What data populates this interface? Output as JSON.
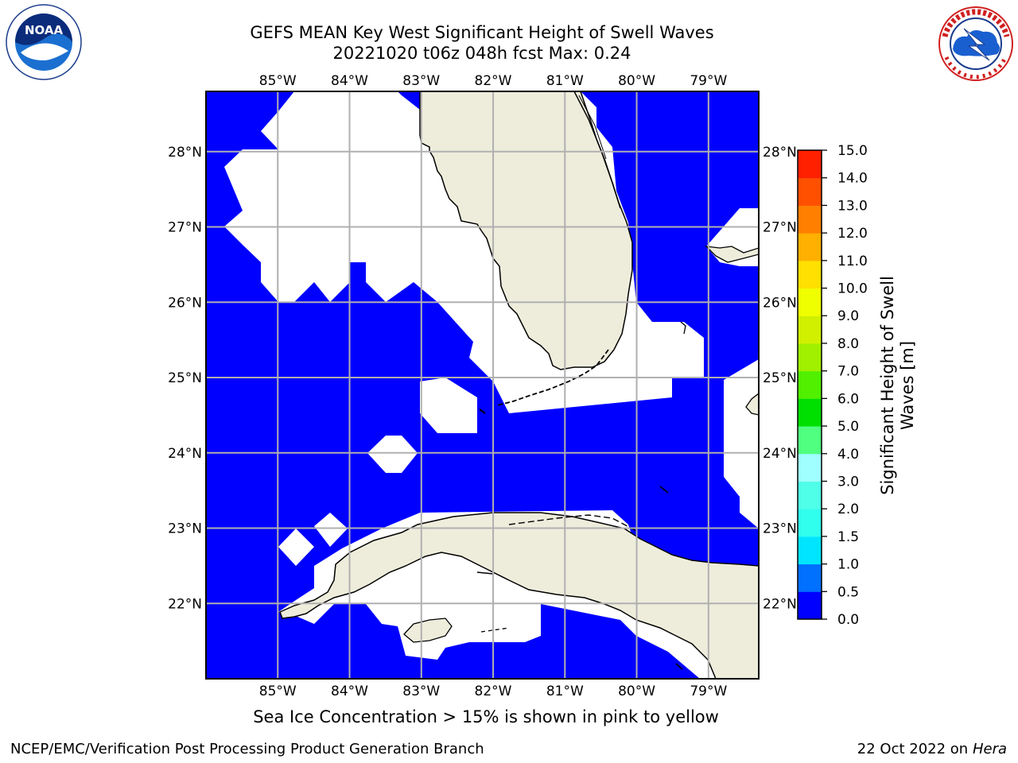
{
  "title": {
    "line1": "GEFS MEAN Key West Significant Height of Swell Waves",
    "line2": "20221020 t06z 048h fcst   Max: 0.24"
  },
  "logos": {
    "left": "noaa-logo",
    "left_text": "NOAA",
    "right": "nws-logo"
  },
  "map": {
    "lon_ticks": [
      "85°W",
      "84°W",
      "83°W",
      "82°W",
      "81°W",
      "80°W",
      "79°W"
    ],
    "lat_ticks": [
      "28°N",
      "27°N",
      "26°N",
      "25°N",
      "24°N",
      "23°N",
      "22°N"
    ],
    "lon_values": [
      -85,
      -84,
      -83,
      -82,
      -81,
      -80,
      -79
    ],
    "lat_values": [
      28,
      27,
      26,
      25,
      24,
      23,
      22
    ],
    "extent": {
      "lon_min": -86,
      "lon_max": -78.3,
      "lat_min": 21,
      "lat_max": 28.8
    },
    "water_color": "#0000ff",
    "land_color": "#eeeddc",
    "masked_color": "#ffffff",
    "grid_color": "#b0b0b0"
  },
  "colorbar": {
    "label": "Significant Height of Swell Waves [m]",
    "label_line1": "Significant Height of Swell",
    "label_line2": "Waves [m]",
    "tick_labels": [
      "0.0",
      "0.5",
      "1.0",
      "1.5",
      "2.0",
      "3.0",
      "4.0",
      "5.0",
      "6.0",
      "7.0",
      "8.0",
      "9.0",
      "10.0",
      "11.0",
      "12.0",
      "13.0",
      "14.0",
      "15.0"
    ],
    "colors": [
      "#0000ff",
      "#0070ff",
      "#00e5ff",
      "#30ffee",
      "#50ffe8",
      "#a0ffff",
      "#50ff80",
      "#00e000",
      "#50f000",
      "#a0f000",
      "#d0f000",
      "#f0ff00",
      "#ffe000",
      "#ffb000",
      "#ff8000",
      "#ff5000",
      "#ff2000",
      "#ff0000"
    ]
  },
  "note": "Sea Ice Concentration > 15% is shown in pink to yellow",
  "footer": {
    "left": "NCEP/EMC/Verification Post Processing Product Generation Branch",
    "right_prefix": "22 Oct 2022 on ",
    "right_host": "Hera"
  }
}
